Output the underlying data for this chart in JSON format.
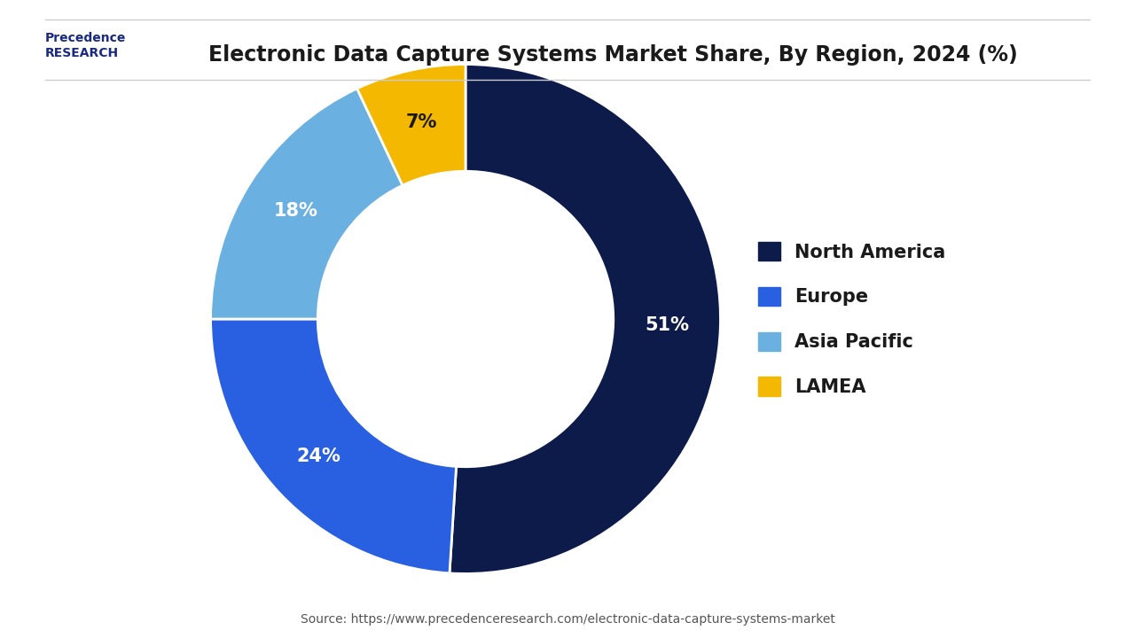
{
  "title": "Electronic Data Capture Systems Market Share, By Region, 2024 (%)",
  "source_text": "Source: https://www.precedenceresearch.com/electronic-data-capture-systems-market",
  "segments": [
    {
      "label": "North America",
      "value": 51,
      "color": "#0d1b4b",
      "text_color": "white"
    },
    {
      "label": "Europe",
      "value": 24,
      "color": "#2860e1",
      "text_color": "white"
    },
    {
      "label": "Asia Pacific",
      "value": 18,
      "color": "#6ab0e0",
      "text_color": "white"
    },
    {
      "label": "LAMEA",
      "value": 7,
      "color": "#f5b800",
      "text_color": "#1a1a1a"
    }
  ],
  "donut_width": 0.42,
  "start_angle": 90,
  "bg_color": "#ffffff",
  "title_fontsize": 17,
  "legend_fontsize": 15,
  "label_fontsize": 15,
  "source_fontsize": 10
}
